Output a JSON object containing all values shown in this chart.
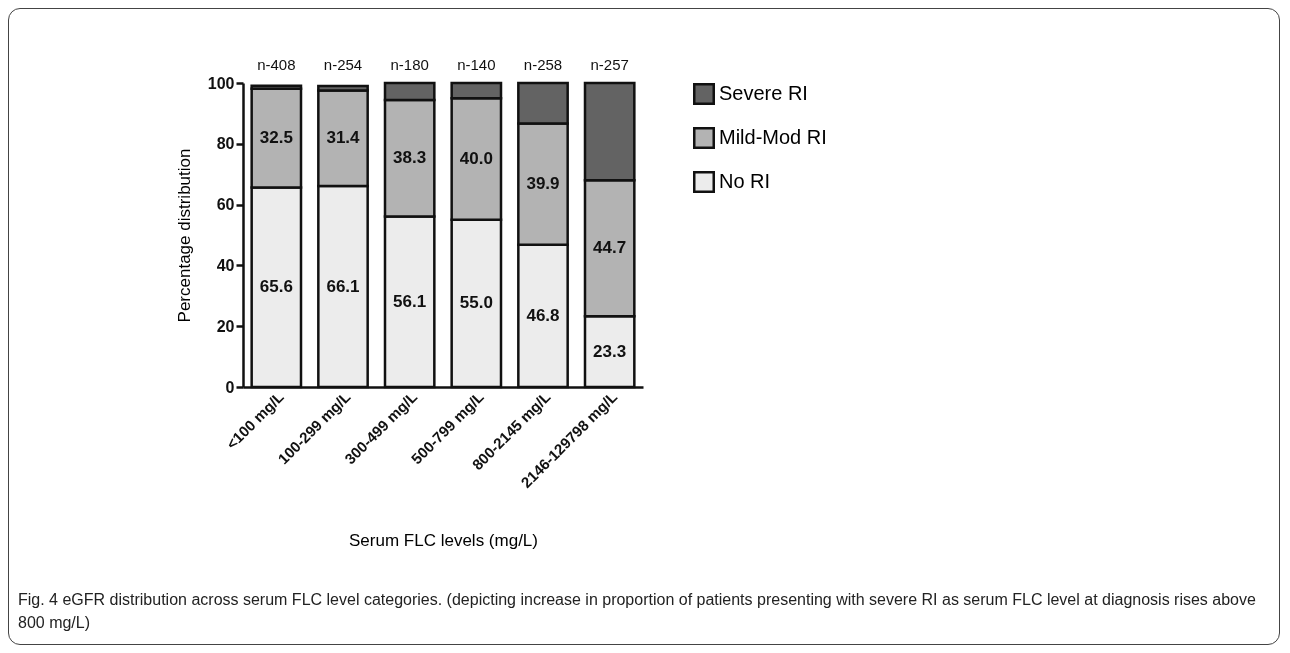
{
  "chart_data": {
    "type": "bar",
    "stacked": true,
    "xlabel": "Serum FLC levels (mg/L)",
    "ylabel": "Percentage distribution",
    "categories": [
      "<100 mg/L",
      "100-299 mg/L",
      "300-499 mg/L",
      "500-799 mg/L",
      "800-2145 mg/L",
      "2146-129798 mg/L"
    ],
    "series": [
      {
        "name": "No RI",
        "color": "#ececec",
        "values": [
          65.6,
          66.1,
          56.1,
          55.0,
          46.8,
          23.3
        ],
        "value_labels": [
          "65.6",
          "66.1",
          "56.1",
          "55.0",
          "46.8",
          "23.3"
        ]
      },
      {
        "name": "Mild-Mod RI",
        "color": "#b3b3b3",
        "values": [
          32.5,
          31.4,
          38.3,
          40.0,
          39.9,
          44.7
        ],
        "value_labels": [
          "32.5",
          "31.4",
          "38.3",
          "40.0",
          "39.9",
          "44.7"
        ]
      },
      {
        "name": "Severe RI",
        "color": "#636363",
        "values": [
          1.0,
          1.5,
          5.6,
          5.0,
          13.3,
          32.0
        ]
      }
    ],
    "ylim": [
      0,
      100
    ],
    "yticks": [
      0,
      20,
      40,
      60,
      80,
      100
    ],
    "grid": false,
    "legend": "right",
    "annotations": [
      "n-408",
      "n-254",
      "n-180",
      "n-140",
      "n-258",
      "n-257",
      "Fig. 4 eGFR distribution across serum FLC level categories. (depicting increase in proportion of patients presenting with severe RI as serum FLC level at diagnosis rises above 800 mg/L)"
    ]
  }
}
